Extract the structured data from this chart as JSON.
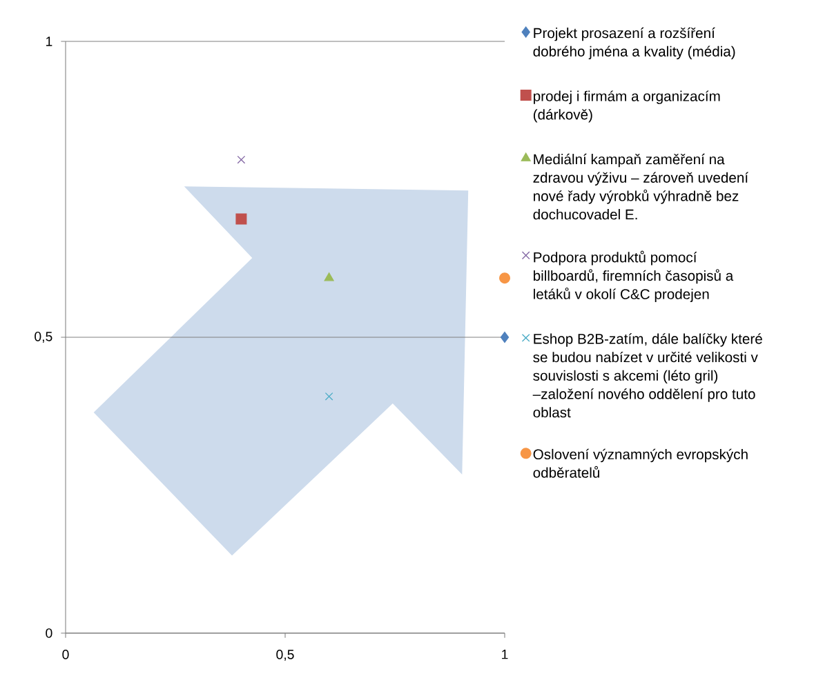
{
  "chart_data": {
    "type": "scatter",
    "xlim": [
      0,
      1
    ],
    "ylim": [
      0,
      1
    ],
    "xticks": [
      0,
      {
        "value": 0.5,
        "label": "0,5"
      },
      1
    ],
    "yticks": [
      0,
      {
        "value": 0.5,
        "label": "0,5"
      },
      1
    ],
    "grid": "y",
    "legend": "right",
    "series": [
      {
        "name": "Projekt prosazení a rozšíření dobrého jména a kvality (média)",
        "color": "#4f81bd",
        "marker": "diamond",
        "x": [
          1
        ],
        "values": [
          0.5
        ]
      },
      {
        "name": "prodej i firmám a organizacím (dárkově)",
        "color": "#c0504d",
        "marker": "square",
        "x": [
          0.4
        ],
        "values": [
          0.7
        ]
      },
      {
        "name": "Mediální kampaň zaměření na zdravou výživu – zároveň uvedení nové řady výrobků výhradně bez dochucovadel E.",
        "color": "#9bbb59",
        "marker": "triangle",
        "x": [
          0.6
        ],
        "values": [
          0.6
        ]
      },
      {
        "name": "Podpora produktů pomocí billboardů, firemních časopisů a letáků v okolí C&C prodejen",
        "color": "#8064a2",
        "marker": "cross",
        "x": [
          0.4
        ],
        "values": [
          0.8
        ]
      },
      {
        "name": "Eshop B2B-zatím, dále balíčky které se budou nabízet v určité velikosti v souvislosti s akcemi (léto gril) –založení nového oddělení pro tuto oblast",
        "color": "#4bacc6",
        "marker": "cross",
        "x": [
          0.6
        ],
        "values": [
          0.4
        ]
      },
      {
        "name": "Oslovení významných evropských odběratelů",
        "color": "#f79646",
        "marker": "circle",
        "x": [
          1
        ],
        "values": [
          0.6
        ]
      }
    ]
  }
}
